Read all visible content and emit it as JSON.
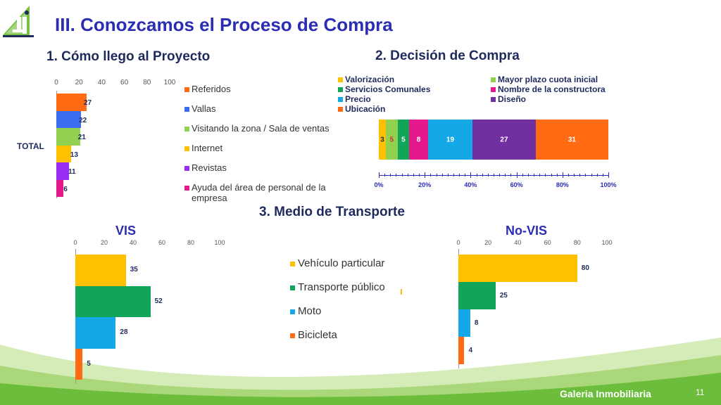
{
  "page": {
    "title": "III.  Conozcamos el Proceso de Compra",
    "footer": "Galeria Inmobiliaria",
    "page_number": "11"
  },
  "colors": {
    "title": "#2b2db3",
    "green_bg_light": "#c8e6a0",
    "green_bg_dark": "#5fb832"
  },
  "chart_data": [
    {
      "id": "chart1",
      "type": "bar",
      "orientation": "horizontal",
      "title": "1.  Cómo llego al Proyecto",
      "category_label": "TOTAL",
      "xlim": [
        0,
        100
      ],
      "xticks": [
        "0",
        "20",
        "40",
        "60",
        "80",
        "100"
      ],
      "series": [
        {
          "name": "Referidos",
          "value": 27,
          "color": "#ff6a13"
        },
        {
          "name": "Vallas",
          "value": 22,
          "color": "#3b6cf2"
        },
        {
          "name": "Visitando la zona / Sala de ventas",
          "value": 21,
          "color": "#92d050"
        },
        {
          "name": "Internet",
          "value": 13,
          "color": "#ffc000"
        },
        {
          "name": "Revistas",
          "value": 11,
          "color": "#9b2cf2"
        },
        {
          "name": "Ayuda del área de personal de la empresa",
          "value": 6,
          "color": "#e6198c"
        }
      ],
      "legend": "right"
    },
    {
      "id": "chart2",
      "type": "bar",
      "orientation": "horizontal",
      "stacked": "100%",
      "title": "2.  Decisión de Compra",
      "xticks": [
        "0%",
        "20%",
        "40%",
        "60%",
        "80%",
        "100%"
      ],
      "series": [
        {
          "name": "Valorización",
          "value": 3,
          "color": "#ffc000"
        },
        {
          "name": "Mayor plazo cuota inicial",
          "value": 5,
          "color": "#92d050"
        },
        {
          "name": "Servicios Comunales",
          "value": 5,
          "color": "#10a558"
        },
        {
          "name": "Nombre de la constructora",
          "value": 8,
          "color": "#e6198c"
        },
        {
          "name": "Precio",
          "value": 19,
          "color": "#14a8e6"
        },
        {
          "name": "Diseño",
          "value": 27,
          "color": "#7030a0"
        },
        {
          "name": "Ubicación",
          "value": 31,
          "color": "#ff6a13"
        }
      ],
      "legend": "top"
    },
    {
      "id": "chart3",
      "type": "bar",
      "orientation": "horizontal",
      "section_title": "3.    Medio de Transporte",
      "title": "VIS",
      "xlim": [
        0,
        100
      ],
      "xticks": [
        "0",
        "20",
        "40",
        "60",
        "80",
        "100"
      ],
      "series": [
        {
          "name": "Vehículo particular",
          "value": 35,
          "color": "#ffc000"
        },
        {
          "name": "Transporte público",
          "value": 52,
          "color": "#10a558"
        },
        {
          "name": "Moto",
          "value": 28,
          "color": "#14a8e6"
        },
        {
          "name": "Bicicleta",
          "value": 5,
          "color": "#ff6a13"
        }
      ],
      "legend": "right"
    },
    {
      "id": "chart4",
      "type": "bar",
      "orientation": "horizontal",
      "title": "No-VIS",
      "xlim": [
        0,
        100
      ],
      "xticks": [
        "0",
        "20",
        "40",
        "60",
        "80",
        "100"
      ],
      "series": [
        {
          "name": "Vehículo particular",
          "value": 80,
          "color": "#ffc000"
        },
        {
          "name": "Transporte público",
          "value": 25,
          "color": "#10a558"
        },
        {
          "name": "Moto",
          "value": 8,
          "color": "#14a8e6"
        },
        {
          "name": "Bicicleta",
          "value": 4,
          "color": "#ff6a13"
        }
      ]
    }
  ]
}
